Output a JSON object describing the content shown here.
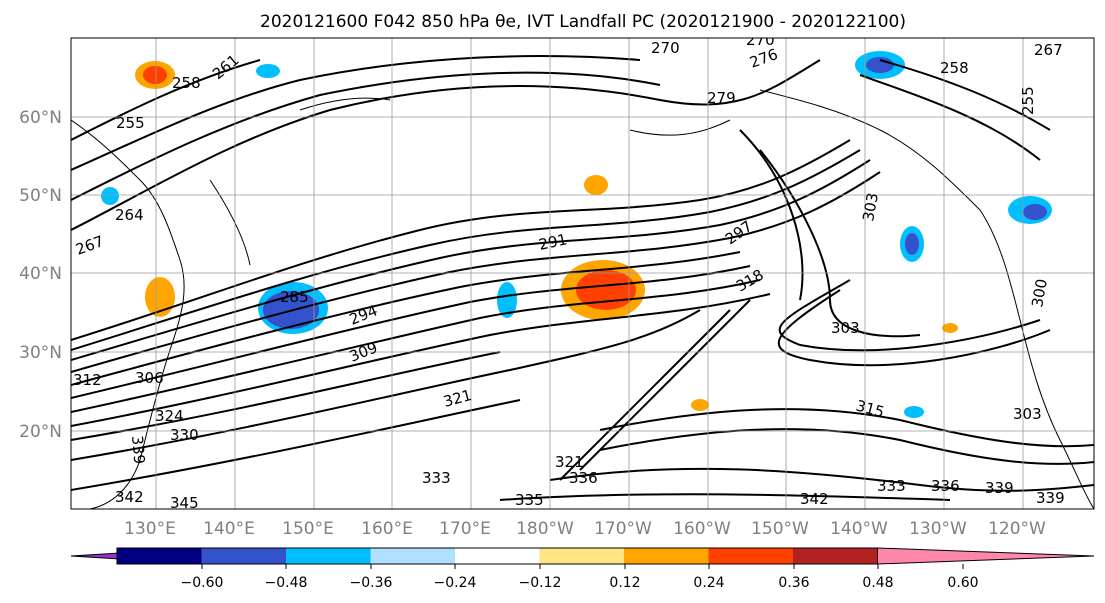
{
  "figure": {
    "title": "2020121600 F042 850 hPa θe, IVT Landfall PC (2020121900 - 2020122100)"
  },
  "map": {
    "lat_labels": [
      "60°N",
      "50°N",
      "40°N",
      "30°N",
      "20°N"
    ],
    "lon_labels": [
      "130°E",
      "140°E",
      "150°E",
      "160°E",
      "170°E",
      "180°W",
      "170°W",
      "160°W",
      "150°W",
      "140°W",
      "130°W",
      "120°W"
    ],
    "contour_labels": [
      "270",
      "270",
      "267",
      "261",
      "258",
      "255",
      "258",
      "255",
      "279",
      "276",
      "264",
      "267",
      "291",
      "297",
      "285",
      "294",
      "309",
      "303",
      "303",
      "303",
      "300",
      "306",
      "312",
      "318",
      "315",
      "324",
      "321",
      "321",
      "330",
      "339",
      "333",
      "333",
      "336",
      "342",
      "335",
      "336",
      "339",
      "339",
      "342",
      "345"
    ],
    "colors": {
      "contour": "#000000",
      "grid": "#9a9a9a",
      "coast": "#000000"
    }
  },
  "colorbar": {
    "tick_labels": [
      "−0.60",
      "−0.48",
      "−0.36",
      "−0.24",
      "−0.12",
      "0.12",
      "0.24",
      "0.36",
      "0.48",
      "0.60"
    ],
    "colors": [
      "#9932cc",
      "#000080",
      "#3352cc",
      "#00bfff",
      "#b0e0ff",
      "#ffffff",
      "#ffe680",
      "#ffa500",
      "#ff4000",
      "#b22222",
      "#ff88aa"
    ]
  }
}
